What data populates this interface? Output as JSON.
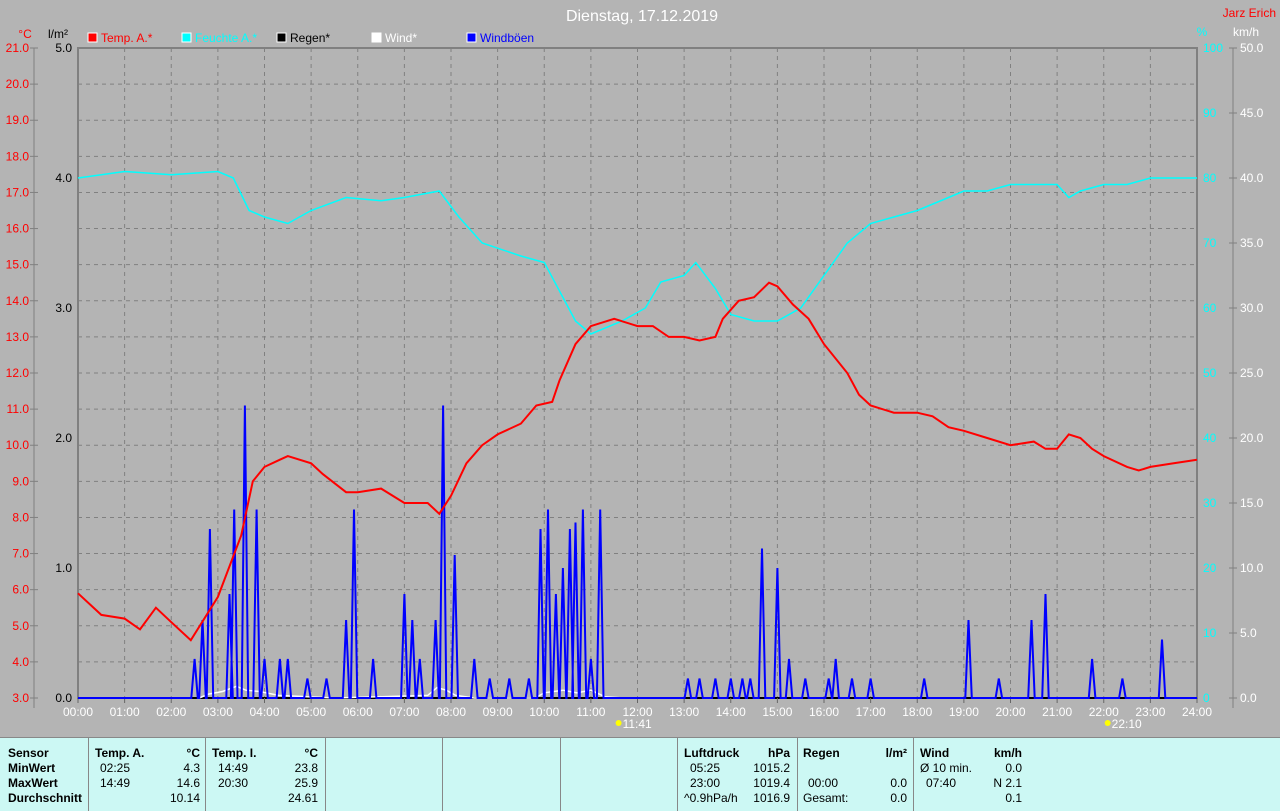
{
  "header": {
    "title": "Dienstag, 17.12.2019",
    "author": "Jarz Erich"
  },
  "legend": [
    {
      "label": "Temp. A.*",
      "color": "#ff0000"
    },
    {
      "label": "Feuchte A.*",
      "color": "#00ffff"
    },
    {
      "label": "Regen*",
      "color": "#000000"
    },
    {
      "label": "Wind*",
      "color": "#ffffff"
    },
    {
      "label": "Windböen",
      "color": "#0000ff"
    }
  ],
  "chart_data": {
    "type": "line",
    "title": "Dienstag, 17.12.2019",
    "x_ticks": [
      "00:00",
      "01:00",
      "02:00",
      "03:00",
      "04:00",
      "05:00",
      "06:00",
      "07:00",
      "08:00",
      "09:00",
      "10:00",
      "11:00",
      "12:00",
      "13:00",
      "14:00",
      "15:00",
      "16:00",
      "17:00",
      "18:00",
      "19:00",
      "20:00",
      "21:00",
      "22:00",
      "23:00",
      "24:00"
    ],
    "axes": {
      "temp": {
        "unit": "°C",
        "range": [
          3,
          21
        ],
        "ticks": [
          "21.0",
          "20.0",
          "19.0",
          "18.0",
          "17.0",
          "16.0",
          "15.0",
          "14.0",
          "13.0",
          "12.0",
          "11.0",
          "10.0",
          "9.0",
          "8.0",
          "7.0",
          "6.0",
          "5.0",
          "4.0",
          "3.0"
        ]
      },
      "rain": {
        "unit": "l/m²",
        "range": [
          0,
          5
        ],
        "ticks": [
          "5.0",
          "4.0",
          "3.0",
          "2.0",
          "1.0",
          "0.0"
        ]
      },
      "humidity": {
        "unit": "%",
        "range": [
          0,
          100
        ],
        "ticks": [
          "100",
          "90",
          "80",
          "70",
          "60",
          "50",
          "40",
          "30",
          "20",
          "10",
          "0"
        ]
      },
      "wind": {
        "unit": "km/h",
        "range": [
          0,
          50
        ],
        "ticks": [
          "50.0",
          "45.0",
          "40.0",
          "35.0",
          "30.0",
          "25.0",
          "20.0",
          "15.0",
          "10.0",
          "5.0",
          "0.0"
        ]
      }
    },
    "grid": true,
    "series": [
      {
        "name": "Temp. A.*",
        "axis": "temp",
        "color": "#ff0000",
        "points": [
          [
            0,
            5.9
          ],
          [
            0.5,
            5.3
          ],
          [
            1,
            5.2
          ],
          [
            1.33,
            4.9
          ],
          [
            1.67,
            5.5
          ],
          [
            2,
            5.1
          ],
          [
            2.42,
            4.6
          ],
          [
            3,
            5.8
          ],
          [
            3.5,
            7.5
          ],
          [
            3.75,
            9.0
          ],
          [
            4,
            9.4
          ],
          [
            4.33,
            9.6
          ],
          [
            4.5,
            9.7
          ],
          [
            5,
            9.5
          ],
          [
            5.25,
            9.2
          ],
          [
            5.75,
            8.7
          ],
          [
            6,
            8.7
          ],
          [
            6.5,
            8.8
          ],
          [
            7,
            8.4
          ],
          [
            7.5,
            8.4
          ],
          [
            7.75,
            8.1
          ],
          [
            8,
            8.6
          ],
          [
            8.33,
            9.5
          ],
          [
            8.67,
            10.0
          ],
          [
            9,
            10.3
          ],
          [
            9.5,
            10.6
          ],
          [
            9.83,
            11.1
          ],
          [
            10.17,
            11.2
          ],
          [
            10.33,
            11.8
          ],
          [
            10.67,
            12.8
          ],
          [
            11,
            13.3
          ],
          [
            11.5,
            13.5
          ],
          [
            12,
            13.3
          ],
          [
            12.33,
            13.3
          ],
          [
            12.67,
            13.0
          ],
          [
            13,
            13.0
          ],
          [
            13.33,
            12.9
          ],
          [
            13.67,
            13.0
          ],
          [
            13.83,
            13.5
          ],
          [
            14.17,
            14.0
          ],
          [
            14.5,
            14.1
          ],
          [
            14.82,
            14.5
          ],
          [
            15,
            14.4
          ],
          [
            15.33,
            13.9
          ],
          [
            15.67,
            13.5
          ],
          [
            16,
            12.8
          ],
          [
            16.5,
            12.0
          ],
          [
            16.75,
            11.4
          ],
          [
            17,
            11.1
          ],
          [
            17.5,
            10.9
          ],
          [
            18,
            10.9
          ],
          [
            18.33,
            10.8
          ],
          [
            18.67,
            10.5
          ],
          [
            19,
            10.4
          ],
          [
            19.5,
            10.2
          ],
          [
            20,
            10.0
          ],
          [
            20.5,
            10.1
          ],
          [
            20.75,
            9.9
          ],
          [
            21,
            9.9
          ],
          [
            21.25,
            10.3
          ],
          [
            21.5,
            10.2
          ],
          [
            21.75,
            9.9
          ],
          [
            22,
            9.7
          ],
          [
            22.5,
            9.4
          ],
          [
            22.75,
            9.3
          ],
          [
            23,
            9.4
          ],
          [
            23.5,
            9.5
          ],
          [
            24,
            9.6
          ]
        ]
      },
      {
        "name": "Feuchte A.*",
        "axis": "humidity",
        "color": "#00ffff",
        "points": [
          [
            0,
            80
          ],
          [
            1,
            81
          ],
          [
            2,
            80.5
          ],
          [
            3,
            81
          ],
          [
            3.33,
            80
          ],
          [
            3.67,
            75
          ],
          [
            4,
            74
          ],
          [
            4.5,
            73
          ],
          [
            5,
            75
          ],
          [
            5.75,
            77
          ],
          [
            6.5,
            76.5
          ],
          [
            7,
            77
          ],
          [
            7.75,
            78
          ],
          [
            8.17,
            74
          ],
          [
            8.67,
            70
          ],
          [
            9.5,
            68
          ],
          [
            10,
            67
          ],
          [
            10.67,
            58
          ],
          [
            11,
            56
          ],
          [
            11.67,
            58
          ],
          [
            12.17,
            60
          ],
          [
            12.5,
            64
          ],
          [
            13,
            65
          ],
          [
            13.25,
            67
          ],
          [
            13.67,
            63
          ],
          [
            14,
            59
          ],
          [
            14.5,
            58
          ],
          [
            15,
            58
          ],
          [
            15.5,
            60
          ],
          [
            16,
            65
          ],
          [
            16.5,
            70
          ],
          [
            17,
            73
          ],
          [
            17.5,
            74
          ],
          [
            18,
            75
          ],
          [
            18.67,
            77
          ],
          [
            19,
            78
          ],
          [
            19.5,
            78
          ],
          [
            20,
            79
          ],
          [
            20.5,
            79
          ],
          [
            21,
            79
          ],
          [
            21.25,
            77
          ],
          [
            21.5,
            78
          ],
          [
            22,
            79
          ],
          [
            22.5,
            79
          ],
          [
            23,
            80
          ],
          [
            24,
            80
          ]
        ]
      },
      {
        "name": "Wind*",
        "axis": "wind",
        "color": "#ffffff",
        "points": [
          [
            2.6,
            0
          ],
          [
            2.8,
            0.3
          ],
          [
            3.1,
            0.5
          ],
          [
            3.4,
            0.9
          ],
          [
            3.6,
            0.6
          ],
          [
            3.9,
            0.5
          ],
          [
            4.3,
            0.2
          ],
          [
            5.5,
            0
          ],
          [
            7.5,
            0.2
          ],
          [
            7.7,
            0.8
          ],
          [
            7.9,
            0.6
          ],
          [
            8.1,
            0.2
          ],
          [
            8.5,
            0
          ],
          [
            9.8,
            0
          ],
          [
            10,
            0.4
          ],
          [
            10.4,
            0.6
          ],
          [
            10.7,
            0.4
          ],
          [
            11,
            0.6
          ],
          [
            11.3,
            0.1
          ],
          [
            11.7,
            0
          ]
        ]
      },
      {
        "name": "Windböen",
        "axis": "wind",
        "color": "#0000ff",
        "peaks": [
          [
            2.5,
            3
          ],
          [
            2.67,
            6
          ],
          [
            2.83,
            13
          ],
          [
            3.25,
            8
          ],
          [
            3.35,
            14.5
          ],
          [
            3.58,
            22.5
          ],
          [
            3.83,
            14.5
          ],
          [
            4,
            3
          ],
          [
            4.33,
            3
          ],
          [
            4.5,
            3
          ],
          [
            4.92,
            1.5
          ],
          [
            5.33,
            1.5
          ],
          [
            5.75,
            6
          ],
          [
            5.92,
            14.5
          ],
          [
            6.33,
            3
          ],
          [
            7,
            8
          ],
          [
            7.17,
            6
          ],
          [
            7.33,
            3
          ],
          [
            7.67,
            6
          ],
          [
            7.83,
            22.5
          ],
          [
            8.08,
            11
          ],
          [
            8.5,
            3
          ],
          [
            8.83,
            1.5
          ],
          [
            9.25,
            1.5
          ],
          [
            9.67,
            1.5
          ],
          [
            9.92,
            13
          ],
          [
            10.08,
            14.5
          ],
          [
            10.25,
            8
          ],
          [
            10.4,
            10
          ],
          [
            10.55,
            13
          ],
          [
            10.67,
            13.5
          ],
          [
            10.83,
            14.5
          ],
          [
            11,
            3
          ],
          [
            11.2,
            14.5
          ],
          [
            13.08,
            1.5
          ],
          [
            13.33,
            1.5
          ],
          [
            13.67,
            1.5
          ],
          [
            14,
            1.5
          ],
          [
            14.25,
            1.5
          ],
          [
            14.42,
            1.5
          ],
          [
            14.67,
            11.5
          ],
          [
            15.0,
            10
          ],
          [
            15.25,
            3
          ],
          [
            15.6,
            1.5
          ],
          [
            16.1,
            1.5
          ],
          [
            16.25,
            3
          ],
          [
            16.6,
            1.5
          ],
          [
            17,
            1.5
          ],
          [
            18.15,
            1.5
          ],
          [
            19.1,
            6
          ],
          [
            19.75,
            1.5
          ],
          [
            20.45,
            6
          ],
          [
            20.75,
            8
          ],
          [
            21.75,
            3
          ],
          [
            22.4,
            1.5
          ],
          [
            23.25,
            4.5
          ]
        ]
      }
    ],
    "markers": [
      {
        "label": "11:41",
        "time": 11.68
      },
      {
        "label": "22:10",
        "time": 22.17
      }
    ]
  },
  "table": {
    "temp_a": {
      "header": [
        "Sensor",
        "Temp. A.",
        "°C"
      ],
      "rows": [
        [
          "MinWert",
          "02:25",
          "4.3"
        ],
        [
          "MaxWert",
          "14:49",
          "14.6"
        ],
        [
          "Durchschnitt",
          "",
          "10.14"
        ]
      ]
    },
    "temp_i": {
      "header": [
        "Temp. I.",
        "°C"
      ],
      "rows": [
        [
          "14:49",
          "23.8"
        ],
        [
          "20:30",
          "25.9"
        ],
        [
          "",
          "24.61"
        ]
      ]
    },
    "luftdruck": {
      "header": [
        "Luftdruck",
        "hPa"
      ],
      "rows": [
        [
          "05:25",
          "1015.2"
        ],
        [
          "23:00",
          "1019.4"
        ],
        [
          "^0.9hPa/h",
          "1016.9"
        ]
      ]
    },
    "regen": {
      "header": [
        "Regen",
        "l/m²"
      ],
      "rows": [
        [
          "",
          ""
        ],
        [
          "00:00",
          "0.0"
        ],
        [
          "Gesamt:",
          "0.0"
        ]
      ]
    },
    "wind": {
      "header": [
        "Wind",
        "km/h"
      ],
      "rows": [
        [
          "Ø 10 min.",
          "0.0"
        ],
        [
          "07:40",
          "N 2.1"
        ],
        [
          "",
          "0.1"
        ]
      ]
    }
  }
}
